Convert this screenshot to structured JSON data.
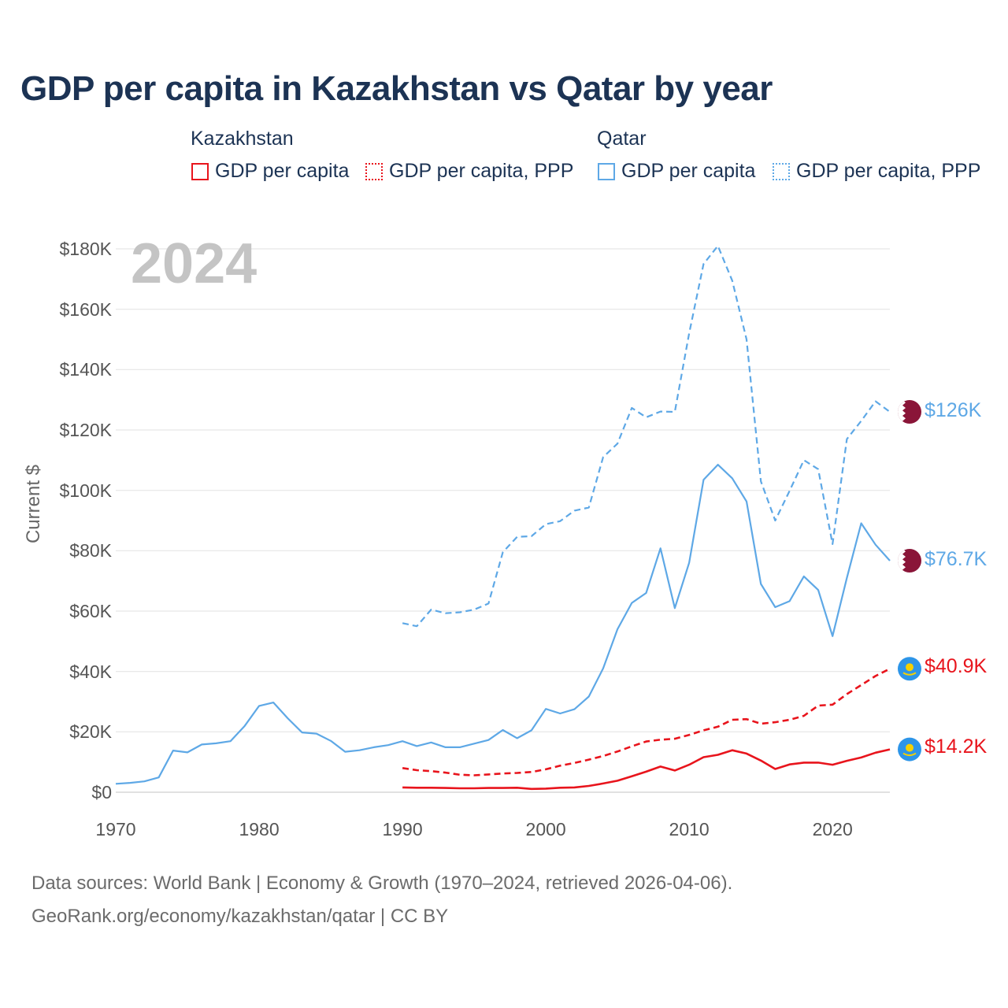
{
  "title": "GDP per capita in Kazakhstan vs Qatar by year",
  "legend": {
    "groups": [
      {
        "name": "Kazakhstan",
        "items": [
          "GDP per capita",
          "GDP per capita, PPP"
        ]
      },
      {
        "name": "Qatar",
        "items": [
          "GDP per capita",
          "GDP per capita, PPP"
        ]
      }
    ]
  },
  "year_label": "2024",
  "end_labels": {
    "qatar_ppp": "$126K",
    "qatar_gdp": "$76.7K",
    "kz_ppp": "$40.9K",
    "kz_gdp": "$14.2K"
  },
  "colors": {
    "kazakhstan": "#e8141c",
    "qatar": "#5ea8e6",
    "title": "#1c3354"
  },
  "footer": {
    "line1": "Data sources: World Bank | Economy & Growth (1970–2024, retrieved 2026-04-06).",
    "line2": "GeoRank.org/economy/kazakhstan/qatar | CC BY"
  },
  "chart_data": {
    "type": "line",
    "title": "GDP per capita in Kazakhstan vs Qatar by year",
    "xlabel": "",
    "ylabel": "Current $",
    "xlim": [
      1970,
      2024
    ],
    "ylim": [
      0,
      180000
    ],
    "x_ticks": [
      1970,
      1980,
      1990,
      2000,
      2010,
      2020
    ],
    "y_ticks": [
      {
        "value": 0,
        "label": "$0"
      },
      {
        "value": 20000,
        "label": "$20K"
      },
      {
        "value": 40000,
        "label": "$40K"
      },
      {
        "value": 60000,
        "label": "$60K"
      },
      {
        "value": 80000,
        "label": "$80K"
      },
      {
        "value": 100000,
        "label": "$100K"
      },
      {
        "value": 120000,
        "label": "$120K"
      },
      {
        "value": 140000,
        "label": "$140K"
      },
      {
        "value": 160000,
        "label": "$160K"
      },
      {
        "value": 180000,
        "label": "$180K"
      }
    ],
    "grid": true,
    "legend_position": "top",
    "series": [
      {
        "name": "Qatar GDP per capita, PPP",
        "country": "qatar",
        "style": "dashed",
        "x": [
          1990,
          1991,
          1992,
          1993,
          1994,
          1995,
          1996,
          1997,
          1998,
          1999,
          2000,
          2001,
          2002,
          2003,
          2004,
          2005,
          2006,
          2007,
          2008,
          2009,
          2010,
          2011,
          2012,
          2013,
          2014,
          2015,
          2016,
          2017,
          2018,
          2019,
          2020,
          2021,
          2022,
          2023,
          2024
        ],
        "values": [
          56000,
          55000,
          60500,
          59300,
          59600,
          60500,
          62500,
          79500,
          84600,
          84800,
          88800,
          89800,
          93300,
          94300,
          111000,
          115500,
          127300,
          124200,
          126100,
          126000,
          152000,
          175000,
          181000,
          169500,
          150000,
          103000,
          90000,
          99800,
          110000,
          107000,
          82200,
          117000,
          123000,
          129500,
          126000
        ]
      },
      {
        "name": "Qatar GDP per capita",
        "country": "qatar",
        "style": "solid",
        "x": [
          1970,
          1971,
          1972,
          1973,
          1974,
          1975,
          1976,
          1977,
          1978,
          1979,
          1980,
          1981,
          1982,
          1983,
          1984,
          1985,
          1986,
          1987,
          1988,
          1989,
          1990,
          1991,
          1992,
          1993,
          1994,
          1995,
          1996,
          1997,
          1998,
          1999,
          2000,
          2001,
          2002,
          2003,
          2004,
          2005,
          2006,
          2007,
          2008,
          2009,
          2010,
          2011,
          2012,
          2013,
          2014,
          2015,
          2016,
          2017,
          2018,
          2019,
          2020,
          2021,
          2022,
          2023,
          2024
        ],
        "values": [
          2800,
          3100,
          3600,
          4900,
          13800,
          13200,
          15800,
          16200,
          16900,
          22000,
          28600,
          29700,
          24500,
          19800,
          19400,
          17000,
          13400,
          13900,
          14900,
          15600,
          16900,
          15300,
          16500,
          14900,
          14900,
          16100,
          17300,
          20600,
          17900,
          20500,
          27600,
          26100,
          27500,
          31700,
          41000,
          54000,
          62700,
          66000,
          80800,
          61000,
          76000,
          103500,
          108500,
          104000,
          96300,
          69000,
          61300,
          63300,
          71500,
          67000,
          51700,
          71000,
          89100,
          82000,
          76700
        ]
      },
      {
        "name": "Kazakhstan GDP per capita, PPP",
        "country": "kazakhstan",
        "style": "dashed",
        "x": [
          1990,
          1991,
          1992,
          1993,
          1994,
          1995,
          1996,
          1997,
          1998,
          1999,
          2000,
          2001,
          2002,
          2003,
          2004,
          2005,
          2006,
          2007,
          2008,
          2009,
          2010,
          2011,
          2012,
          2013,
          2014,
          2015,
          2016,
          2017,
          2018,
          2019,
          2020,
          2021,
          2022,
          2023,
          2024
        ],
        "values": [
          8000,
          7300,
          7000,
          6500,
          5800,
          5600,
          5900,
          6200,
          6400,
          6700,
          7600,
          8800,
          9700,
          10800,
          12000,
          13500,
          15200,
          16800,
          17400,
          17700,
          19000,
          20500,
          21700,
          24000,
          24200,
          22700,
          23200,
          24000,
          25300,
          28700,
          29000,
          32500,
          35500,
          38500,
          40900
        ]
      },
      {
        "name": "Kazakhstan GDP per capita",
        "country": "kazakhstan",
        "style": "solid",
        "x": [
          1990,
          1991,
          1992,
          1993,
          1994,
          1995,
          1996,
          1997,
          1998,
          1999,
          2000,
          2001,
          2002,
          2003,
          2004,
          2005,
          2006,
          2007,
          2008,
          2009,
          2010,
          2011,
          2012,
          2013,
          2014,
          2015,
          2016,
          2017,
          2018,
          2019,
          2020,
          2021,
          2022,
          2023,
          2024
        ],
        "values": [
          1600,
          1500,
          1500,
          1400,
          1300,
          1300,
          1400,
          1400,
          1500,
          1100,
          1200,
          1500,
          1600,
          2100,
          2900,
          3800,
          5300,
          6800,
          8500,
          7200,
          9100,
          11600,
          12400,
          13900,
          12800,
          10500,
          7700,
          9200,
          9800,
          9800,
          9100,
          10400,
          11500,
          13100,
          14200
        ]
      }
    ]
  }
}
